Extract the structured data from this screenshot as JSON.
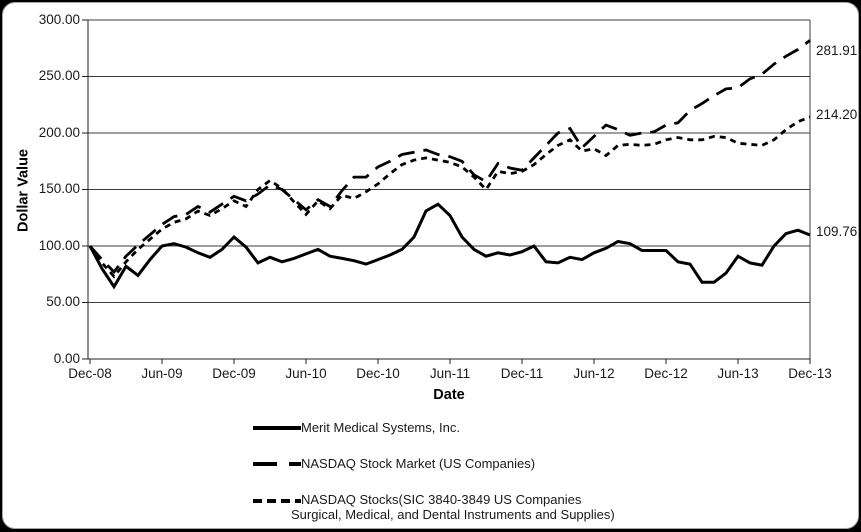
{
  "chart": {
    "y_title": "Dollar Value",
    "x_title": "Date",
    "y_ticks": [
      "300.00",
      "250.00",
      "200.00",
      "150.00",
      "100.00",
      "50.00",
      "0.00"
    ],
    "x_ticks": [
      "Dec-08",
      "Jun-09",
      "Dec-09",
      "Jun-10",
      "Dec-10",
      "Jun-11",
      "Dec-11",
      "Jun-12",
      "Dec-12",
      "Jun-13",
      "Dec-13"
    ],
    "end_labels": {
      "nasdaq": "281.91",
      "sic": "214.20",
      "merit": "109.76"
    }
  },
  "legend": {
    "items": [
      {
        "key": "merit",
        "style": "solid",
        "label": "Merit Medical Systems, Inc."
      },
      {
        "key": "nasdaq",
        "style": "long-dash",
        "label": "NASDAQ Stock Market (US Companies)"
      },
      {
        "key": "sic",
        "style": "short-dash",
        "label_line1": "NASDAQ Stocks(SIC 3840-3849 US Companies",
        "label_line2": "Surgical, Medical, and Dental Instruments and Supplies)"
      }
    ]
  },
  "chart_data": {
    "type": "line",
    "title": "",
    "xlabel": "Date",
    "ylabel": "Dollar Value",
    "ylim": [
      0,
      300
    ],
    "y_tick_step": 50,
    "grid": "horizontal",
    "legend_position": "bottom",
    "x_tick_labels": [
      "Dec-08",
      "Jun-09",
      "Dec-09",
      "Jun-10",
      "Dec-10",
      "Jun-11",
      "Dec-11",
      "Jun-12",
      "Dec-12",
      "Jun-13",
      "Dec-13"
    ],
    "months": [
      "Dec-08",
      "Jan-09",
      "Feb-09",
      "Mar-09",
      "Apr-09",
      "May-09",
      "Jun-09",
      "Jul-09",
      "Aug-09",
      "Sep-09",
      "Oct-09",
      "Nov-09",
      "Dec-09",
      "Jan-10",
      "Feb-10",
      "Mar-10",
      "Apr-10",
      "May-10",
      "Jun-10",
      "Jul-10",
      "Aug-10",
      "Sep-10",
      "Oct-10",
      "Nov-10",
      "Dec-10",
      "Jan-11",
      "Feb-11",
      "Mar-11",
      "Apr-11",
      "May-11",
      "Jun-11",
      "Jul-11",
      "Aug-11",
      "Sep-11",
      "Oct-11",
      "Nov-11",
      "Dec-11",
      "Jan-12",
      "Feb-12",
      "Mar-12",
      "Apr-12",
      "May-12",
      "Jun-12",
      "Jul-12",
      "Aug-12",
      "Sep-12",
      "Oct-12",
      "Nov-12",
      "Dec-12",
      "Jan-13",
      "Feb-13",
      "Mar-13",
      "Apr-13",
      "May-13",
      "Jun-13",
      "Jul-13",
      "Aug-13",
      "Sep-13",
      "Oct-13",
      "Nov-13",
      "Dec-13"
    ],
    "series": [
      {
        "key": "merit",
        "name": "Merit Medical Systems, Inc.",
        "dash": "solid",
        "end_value": 109.76,
        "values": [
          100,
          80,
          64,
          82,
          74,
          88,
          100,
          102,
          99,
          94,
          90,
          97,
          108,
          99,
          85,
          90,
          86,
          89,
          93,
          97,
          91,
          89,
          87,
          84,
          88,
          92,
          97,
          108,
          131,
          137,
          127,
          108,
          97,
          91,
          94,
          92,
          95,
          100,
          86,
          85,
          90,
          88,
          94,
          98,
          104,
          102,
          96,
          96,
          96,
          86,
          84,
          68,
          68,
          76,
          91,
          85,
          83,
          100,
          111,
          114,
          109.76
        ]
      },
      {
        "key": "nasdaq",
        "name": "NASDAQ Stock Market (US Companies)",
        "dash": "long-dash",
        "end_value": 281.91,
        "values": [
          100,
          88,
          77,
          91,
          101,
          110,
          119,
          126,
          128,
          135,
          130,
          137,
          144,
          140,
          146,
          154,
          150,
          141,
          132,
          141,
          135,
          149,
          161,
          161,
          170,
          175,
          181,
          183,
          185,
          181,
          179,
          175,
          163,
          157,
          173,
          169,
          167,
          178,
          189,
          200,
          204,
          187,
          197,
          207,
          203,
          198,
          200,
          201,
          207,
          209,
          220,
          226,
          233,
          239,
          240,
          248,
          252,
          261,
          268,
          274,
          281.91
        ]
      },
      {
        "key": "sic",
        "name": "NASDAQ Stocks(SIC 3840-3849 US Companies Surgical, Medical, and Dental Instruments and Supplies)",
        "dash": "short-dash",
        "end_value": 214.2,
        "values": [
          100,
          85,
          73,
          86,
          97,
          106,
          115,
          121,
          124,
          131,
          127,
          133,
          140,
          135,
          150,
          158,
          151,
          139,
          128,
          140,
          133,
          145,
          142,
          148,
          155,
          164,
          172,
          176,
          178,
          176,
          174,
          170,
          161,
          150,
          166,
          164,
          166,
          172,
          181,
          189,
          194,
          184,
          186,
          180,
          189,
          190,
          189,
          190,
          194,
          196,
          194,
          194,
          197,
          196,
          191,
          190,
          189,
          194,
          203,
          210,
          214.2
        ]
      }
    ]
  }
}
